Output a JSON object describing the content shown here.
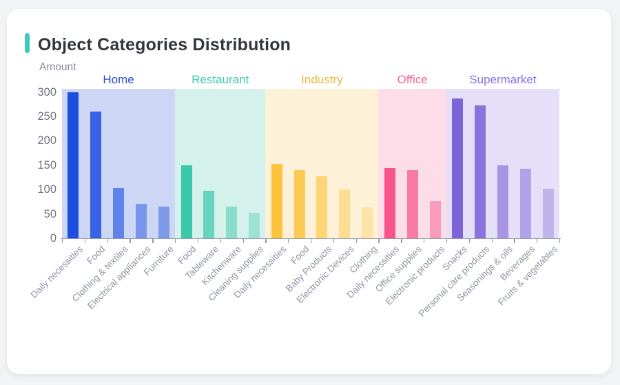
{
  "card": {
    "accent_color": "#3ec9be",
    "background": "#ffffff",
    "page_background": "#f1f3f5"
  },
  "chart_data": {
    "type": "bar",
    "title": "Object Categories Distribution",
    "ylabel": "Amount",
    "xlabel": "",
    "ylim": [
      0,
      300
    ],
    "yticks": [
      0,
      50,
      100,
      150,
      200,
      250,
      300
    ],
    "grid": false,
    "legend_position": "none",
    "axis_color": "#939aa3",
    "y_tick_label_color": "#6f757e",
    "x_tick_label_color": "#8d94a4",
    "groups": [
      {
        "name": "Home",
        "label_color": "#2a4ad6",
        "bar_color": "#1c4fe0",
        "band_color": "#cdd7f5",
        "categories": [
          "Daily necessities",
          "Food",
          "Clothing & textiles",
          "Electrical appliances",
          "Furniture"
        ],
        "values": [
          300,
          260,
          103,
          70,
          65
        ],
        "bar_opacities": [
          1,
          0.85,
          0.62,
          0.48,
          0.45
        ]
      },
      {
        "name": "Restaurant",
        "label_color": "#3fcbb1",
        "bar_color": "#3bc9ac",
        "band_color": "#d4f1eb",
        "categories": [
          "Food",
          "Tableware",
          "Kitchenware",
          "Cleaning supplies"
        ],
        "values": [
          150,
          98,
          65,
          52
        ],
        "bar_opacities": [
          1,
          0.72,
          0.5,
          0.36
        ]
      },
      {
        "name": "Industry",
        "label_color": "#eeb93f",
        "bar_color": "#fdc33c",
        "band_color": "#fdf2d8",
        "categories": [
          "Daily necessities",
          "Food",
          "Baby Products",
          "Electronic Devices",
          "Clothing"
        ],
        "values": [
          152,
          140,
          127,
          100,
          64
        ],
        "bar_opacities": [
          1,
          0.85,
          0.62,
          0.45,
          0.3
        ]
      },
      {
        "name": "Office",
        "label_color": "#f46790",
        "bar_color": "#f7548c",
        "band_color": "#fcdde8",
        "categories": [
          "Daily necessities",
          "Office supplies",
          "Electronic products"
        ],
        "values": [
          144,
          140,
          76
        ],
        "bar_opacities": [
          1,
          0.72,
          0.48
        ]
      },
      {
        "name": "Supermarket",
        "label_color": "#8a6fe4",
        "bar_color": "#7e64d9",
        "band_color": "#e5dff7",
        "categories": [
          "Snacks",
          "Personal care products",
          "Seasonings & oils",
          "Beverages",
          "Fruits & vegetables"
        ],
        "values": [
          286,
          272,
          150,
          142,
          102
        ],
        "bar_opacities": [
          1,
          0.88,
          0.6,
          0.5,
          0.35
        ]
      }
    ]
  }
}
